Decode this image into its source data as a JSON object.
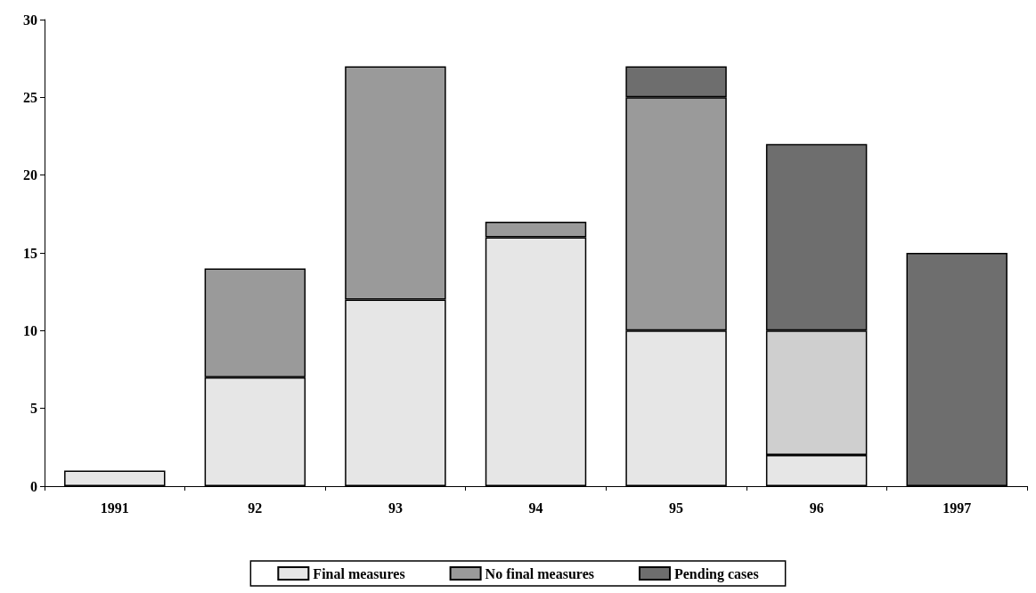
{
  "chart_data": {
    "type": "bar",
    "categories": [
      "1991",
      "92",
      "93",
      "94",
      "95",
      "96",
      "1997"
    ],
    "stacked": true,
    "series": [
      {
        "name": "Final measures",
        "color": "#e6e6e6",
        "values": [
          1,
          7,
          12,
          16,
          10,
          2,
          null
        ]
      },
      {
        "name": "No final measures",
        "color": "#9a9a9a",
        "values": [
          null,
          7,
          15,
          1,
          15,
          null,
          null
        ]
      },
      {
        "color": "#cfcfcf",
        "values": [
          null,
          null,
          null,
          null,
          null,
          8,
          null
        ]
      },
      {
        "name": "Pending cases",
        "color": "#6e6e6e",
        "values": [
          null,
          null,
          null,
          null,
          2,
          12,
          15
        ]
      }
    ],
    "ylim": [
      0,
      30
    ],
    "yticks": [
      0,
      5,
      10,
      15,
      20,
      25,
      30
    ],
    "grid": false,
    "legend": "bottom"
  }
}
